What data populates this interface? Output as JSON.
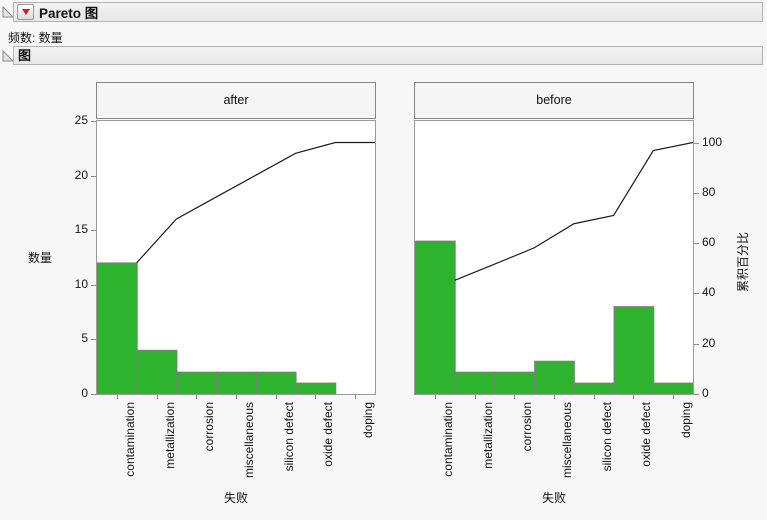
{
  "header": {
    "title": "Pareto 图",
    "frequency_label": "频数: 数量",
    "section_title": "图"
  },
  "icons": {
    "disclosure": "open-disclosure-triangle-icon",
    "menu": "red-triangle-menu-icon"
  },
  "chart_data": {
    "type": "bar",
    "subtype": "pareto-two-panel",
    "categories": [
      "contamination",
      "metallization",
      "corrosion",
      "miscellaneous",
      "silicon defect",
      "oxide defect",
      "doping"
    ],
    "panels": [
      {
        "title": "after",
        "counts": [
          12,
          4,
          2,
          2,
          2,
          1,
          0
        ],
        "total": 23,
        "cumulative_pct": [
          52.2,
          69.6,
          78.3,
          87.0,
          95.7,
          100,
          100
        ]
      },
      {
        "title": "before",
        "counts": [
          14,
          2,
          2,
          3,
          1,
          8,
          1
        ],
        "total": 31,
        "cumulative_pct": [
          45.2,
          51.6,
          58.1,
          67.7,
          71.0,
          96.8,
          100
        ]
      }
    ],
    "xlabel": "失败",
    "ylabel_left": "数量",
    "ylabel_right": "累积百分比",
    "left_ticks": [
      0,
      5,
      10,
      15,
      20,
      25
    ],
    "right_ticks": [
      0,
      20,
      40,
      60,
      80,
      100
    ],
    "left_axis_max": 25,
    "grid": false,
    "legend": false,
    "bar_color": "#2eb32e",
    "bar_border_color": "#7d7d7d",
    "line_color": "#1c1c1c"
  }
}
